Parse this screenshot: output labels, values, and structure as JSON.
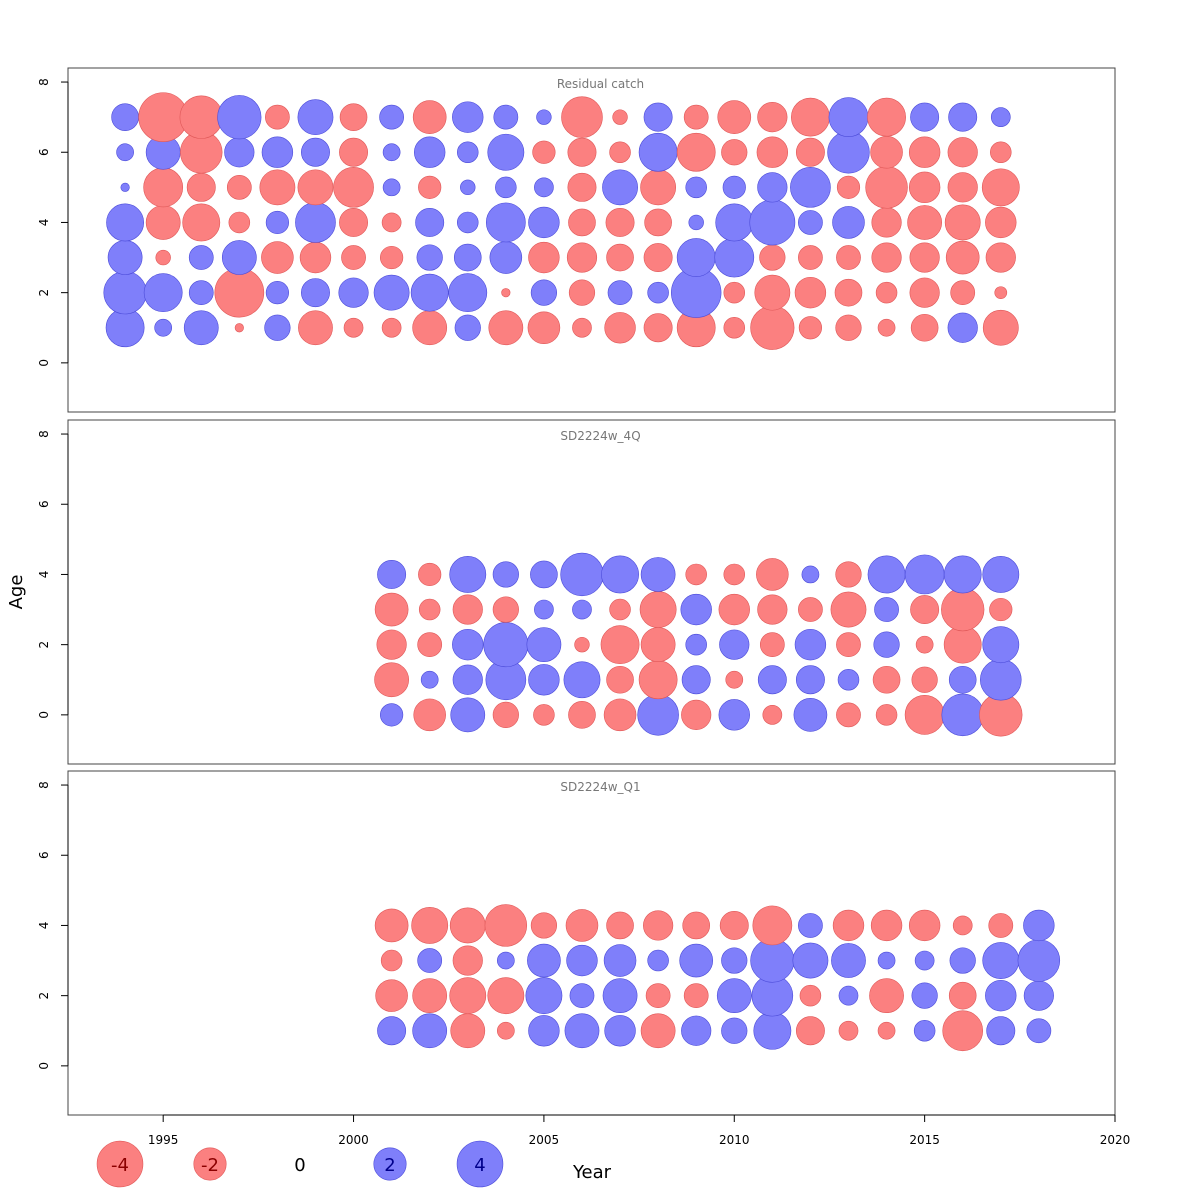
{
  "chart_data": {
    "type": "scatter",
    "subtype": "residual-bubble",
    "xlabel": "Year",
    "ylabel": "Age",
    "xlim": [
      1992.5,
      2020
    ],
    "x_ticks": [
      1995,
      2000,
      2005,
      2010,
      2015,
      2020
    ],
    "ylim": [
      -1.4,
      8.4
    ],
    "y_ticks": [
      0,
      2,
      4,
      6,
      8
    ],
    "colors": {
      "positive": "#7f7ffa",
      "negative": "#fb8080",
      "positive_edge": "#4c4cd9",
      "negative_edge": "#e05858"
    },
    "legend": {
      "position": "bottom-left",
      "items": [
        {
          "label": "-4",
          "value": -4
        },
        {
          "label": "-2",
          "value": -2
        },
        {
          "label": "0",
          "value": 0
        },
        {
          "label": "2",
          "value": 2
        },
        {
          "label": "4",
          "value": 4
        }
      ]
    },
    "panels": [
      {
        "title": "Residual catch",
        "years": [
          1994,
          1995,
          1996,
          1997,
          1998,
          1999,
          2000,
          2001,
          2002,
          2003,
          2004,
          2005,
          2006,
          2007,
          2008,
          2009,
          2010,
          2011,
          2012,
          2013,
          2014,
          2015,
          2016,
          2017
        ],
        "ages": [
          1,
          2,
          3,
          4,
          5,
          6,
          7
        ],
        "residuals": [
          [
            2.0,
            0.4,
            1.6,
            -0.1,
            0.9,
            -1.6,
            -0.5,
            -0.5,
            -1.6,
            0.9,
            -1.6,
            -1.4,
            -0.5,
            -1.3,
            -1.1,
            -2.0,
            -0.6,
            -2.6,
            -0.7,
            -0.9,
            -0.4,
            -1.0,
            1.2,
            -1.7
          ],
          [
            2.5,
            2.0,
            0.8,
            -3.3,
            0.7,
            1.1,
            1.2,
            1.7,
            1.9,
            2.0,
            -0.1,
            0.9,
            -0.9,
            0.8,
            0.6,
            3.4,
            -0.6,
            -1.7,
            -1.3,
            -1.0,
            -0.6,
            -1.2,
            -0.8,
            -0.2
          ],
          [
            1.6,
            -0.3,
            0.8,
            1.6,
            -1.4,
            -1.3,
            -0.8,
            -0.7,
            0.9,
            1.0,
            1.4,
            -1.3,
            -1.2,
            -1.0,
            -1.1,
            2.0,
            2.1,
            -0.9,
            -0.8,
            -0.8,
            -1.2,
            -1.2,
            -1.5,
            -1.2
          ],
          [
            1.9,
            -1.6,
            -1.9,
            -0.6,
            0.7,
            2.2,
            -1.1,
            -0.5,
            1.1,
            0.6,
            2.1,
            1.3,
            -1.0,
            -1.1,
            -1.0,
            0.3,
            1.9,
            2.8,
            0.8,
            1.4,
            -1.2,
            -1.6,
            -1.7,
            -1.3
          ],
          [
            0.1,
            -2.1,
            -1.1,
            -0.8,
            -1.7,
            -1.7,
            -2.2,
            0.4,
            -0.7,
            0.3,
            0.6,
            0.5,
            -1.1,
            1.7,
            -1.7,
            0.6,
            0.7,
            1.2,
            2.2,
            -0.7,
            -2.4,
            -1.3,
            -1.2,
            -1.9
          ],
          [
            0.4,
            1.6,
            -2.4,
            1.2,
            1.3,
            1.1,
            -1.1,
            0.4,
            1.3,
            0.6,
            1.8,
            -0.7,
            -1.1,
            -0.6,
            2.0,
            -2.0,
            -0.9,
            -1.3,
            -1.1,
            2.4,
            -1.4,
            -1.3,
            -1.2,
            -0.6
          ],
          [
            1.0,
            -3.3,
            -2.5,
            2.6,
            -0.8,
            1.7,
            -1.0,
            0.8,
            -1.5,
            1.3,
            0.8,
            0.3,
            -2.3,
            -0.3,
            1.1,
            -0.8,
            -1.5,
            -1.2,
            -2.0,
            2.1,
            -2.0,
            1.1,
            1.1,
            0.5
          ]
        ]
      },
      {
        "title": "SD2224w_4Q",
        "years": [
          2001,
          2002,
          2003,
          2004,
          2005,
          2006,
          2007,
          2008,
          2009,
          2010,
          2011,
          2012,
          2013,
          2014,
          2015,
          2016,
          2017
        ],
        "ages": [
          0,
          1,
          2,
          3,
          4
        ],
        "residuals": [
          [
            0.7,
            -1.4,
            1.6,
            -0.9,
            -0.6,
            -1.0,
            -1.4,
            2.3,
            -1.2,
            1.3,
            -0.5,
            1.5,
            -0.8,
            -0.6,
            -2.1,
            2.4,
            -2.5
          ],
          [
            -1.6,
            0.4,
            1.2,
            2.2,
            1.3,
            1.8,
            -1.0,
            -2.0,
            1.1,
            -0.4,
            1.1,
            1.1,
            0.6,
            -1.0,
            -0.9,
            1.0,
            2.3
          ],
          [
            -1.2,
            -0.8,
            1.3,
            2.7,
            1.6,
            -0.3,
            -2.0,
            -1.6,
            0.6,
            1.2,
            -0.8,
            1.3,
            -0.8,
            0.9,
            -0.4,
            -1.9,
            1.8
          ],
          [
            -1.5,
            -0.6,
            -1.2,
            -0.9,
            0.5,
            0.5,
            -0.6,
            -1.8,
            1.3,
            -1.3,
            -1.2,
            -0.8,
            -1.7,
            0.8,
            -1.1,
            -2.5,
            -0.7
          ],
          [
            1.1,
            -0.7,
            1.8,
            0.9,
            1.0,
            2.5,
            1.9,
            1.6,
            -0.6,
            -0.6,
            -1.4,
            0.4,
            -0.9,
            1.9,
            2.1,
            1.9,
            1.8
          ]
        ]
      },
      {
        "title": "SD2224w_Q1",
        "years": [
          2001,
          2002,
          2003,
          2004,
          2005,
          2006,
          2007,
          2008,
          2009,
          2010,
          2011,
          2012,
          2013,
          2014,
          2015,
          2016,
          2017,
          2018
        ],
        "ages": [
          1,
          2,
          3,
          4
        ],
        "residuals": [
          [
            1.1,
            1.6,
            -1.6,
            -0.4,
            1.3,
            1.6,
            1.3,
            -1.6,
            1.2,
            0.9,
            1.9,
            -1.1,
            -0.5,
            -0.4,
            0.6,
            -2.2,
            1.1,
            0.8
          ],
          [
            -1.4,
            -1.6,
            -1.8,
            -1.8,
            1.8,
            0.8,
            1.6,
            -0.8,
            -0.8,
            1.6,
            2.3,
            -0.6,
            0.5,
            -1.6,
            0.9,
            -1.0,
            1.3,
            1.2
          ],
          [
            -0.6,
            0.8,
            -1.2,
            0.4,
            1.5,
            1.3,
            1.4,
            0.6,
            1.5,
            0.9,
            2.6,
            1.7,
            1.6,
            0.4,
            0.5,
            0.9,
            1.8,
            2.4
          ],
          [
            -1.5,
            -1.8,
            -1.7,
            -2.4,
            -0.9,
            -1.4,
            -1.0,
            -1.2,
            -1.0,
            -1.1,
            -2.1,
            0.8,
            -1.3,
            -1.3,
            -1.3,
            -0.5,
            -0.8,
            1.3
          ]
        ]
      }
    ]
  }
}
